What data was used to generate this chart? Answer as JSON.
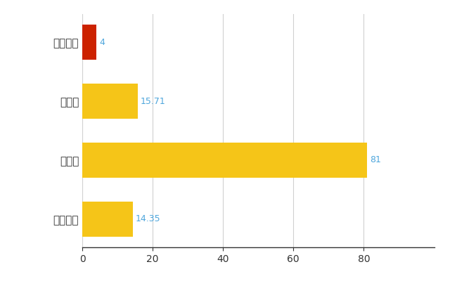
{
  "categories": [
    "おおい町",
    "県平均",
    "県最大",
    "全国平均"
  ],
  "values": [
    4,
    15.71,
    81,
    14.35
  ],
  "bar_colors": [
    "#cc2200",
    "#f5c518",
    "#f5c518",
    "#f5c518"
  ],
  "value_labels": [
    "4",
    "15.71",
    "81",
    "14.35"
  ],
  "value_color": "#4ea6dc",
  "xlim": [
    0,
    100
  ],
  "xticks": [
    0,
    20,
    40,
    60,
    80
  ],
  "grid_color": "#d0d0d0",
  "background_color": "#ffffff",
  "bar_height": 0.6,
  "figsize": [
    6.5,
    4.0
  ],
  "dpi": 100
}
